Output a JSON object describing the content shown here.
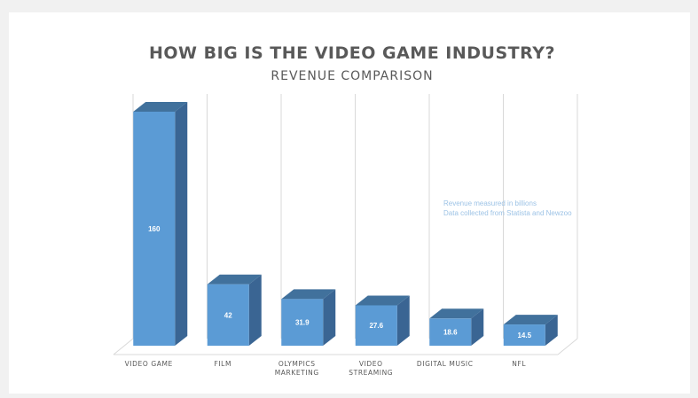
{
  "chart_data": {
    "type": "bar",
    "title": "HOW BIG IS THE VIDEO GAME INDUSTRY?",
    "subtitle": "REVENUE COMPARISON",
    "categories": [
      [
        "VIDEO GAME"
      ],
      [
        "FILM"
      ],
      [
        "OLYMPICS",
        "MARKETING"
      ],
      [
        "VIDEO",
        "STREAMING"
      ],
      [
        "DIGITAL MUSIC"
      ],
      [
        "NFL"
      ]
    ],
    "values": [
      160,
      42,
      31.9,
      27.6,
      18.6,
      14.5
    ],
    "data_labels": [
      "160",
      "42",
      "31.9",
      "27.6",
      "18.6",
      "14.5"
    ],
    "annotations": [
      "Revenue measured in billions",
      "Data collected from Statista and Newzoo"
    ],
    "ylim": [
      0,
      160
    ],
    "grid": true,
    "legend": "none",
    "colors": {
      "bar_front": "#5b9bd5",
      "bar_top": "#41719c",
      "bar_side": "#3a6593",
      "title": "#595959",
      "label": "#595959",
      "annotation": "#9dc3e6",
      "data_label": "#ffffff",
      "grid": "#d9d9d9"
    }
  }
}
